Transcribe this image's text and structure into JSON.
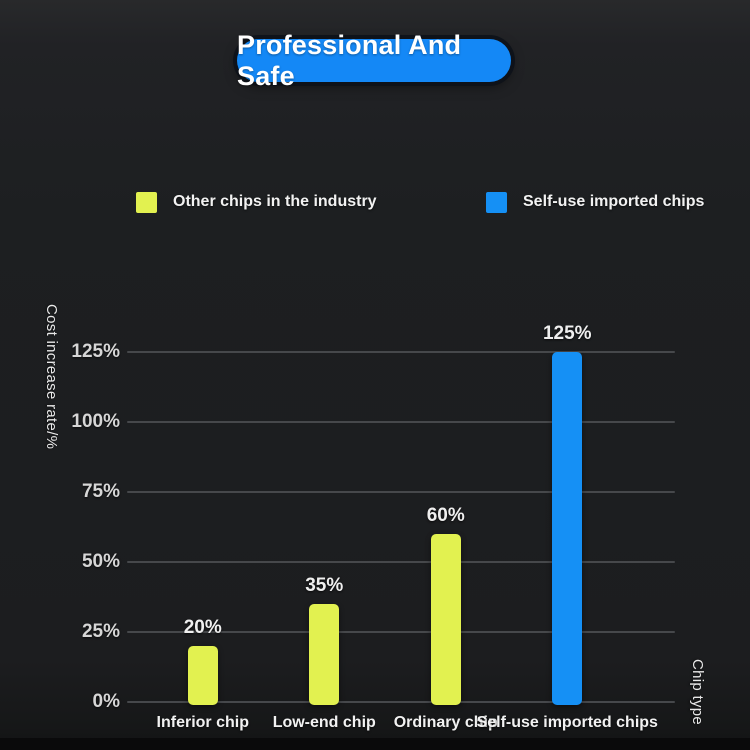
{
  "banner": {
    "label": "Professional And Safe"
  },
  "legend": {
    "items": [
      {
        "label": "Other chips in the industry",
        "color": "#e2f150"
      },
      {
        "label": "Self-use imported chips",
        "color": "#1590f5"
      }
    ]
  },
  "chart_data": {
    "type": "bar",
    "title": "",
    "categories": [
      "Inferior chip",
      "Low-end chip",
      "Ordinary chip",
      "Self-use imported chips"
    ],
    "values": [
      20,
      35,
      60,
      125
    ],
    "bar_labels": [
      "20%",
      "35%",
      "60%",
      "125%"
    ],
    "bar_colors": [
      "#e2f150",
      "#e2f150",
      "#e2f150",
      "#1590f5"
    ],
    "ylabel": "Cost increase rate/%",
    "xlabel": "Chip type",
    "yticks": [
      0,
      25,
      50,
      75,
      100,
      125
    ],
    "ytick_labels": [
      "0%",
      "25%",
      "50%",
      "75%",
      "100%",
      "125%"
    ],
    "ylim": [
      0,
      125
    ],
    "grid": true,
    "legend_entries": [
      "Other chips in the industry",
      "Self-use imported chips"
    ],
    "legend_position": "top"
  },
  "colors": {
    "background": "#1c1d1f",
    "bottom_strip": "#0a0a0b",
    "gridline": "#46484b",
    "tick_text": "#d6d6d6",
    "label_text": "#efefef",
    "bar_yellow": "#e2f150",
    "bar_blue": "#1590f5",
    "banner_blue": "#1488f6",
    "banner_text": "#ffffff"
  }
}
